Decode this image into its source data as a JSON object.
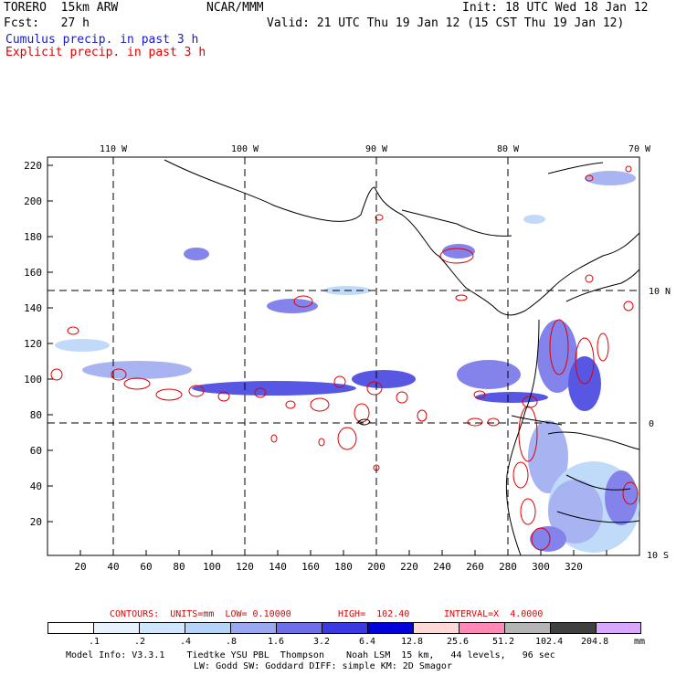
{
  "header": {
    "model": "TORERO  15km ARW",
    "center": "NCAR/MMM",
    "init": "Init: 18 UTC Wed 18 Jan 12",
    "fcst": "Fcst:   27 h",
    "valid": "Valid: 21 UTC Thu 19 Jan 12 (15 CST Thu 19 Jan 12)",
    "line_cumulus": "Cumulus precip. in past 3 h",
    "line_explicit": "Explicit precip. in past 3 h",
    "color_cumulus": "#1a1acc",
    "color_explicit": "#e00000"
  },
  "map": {
    "top_lon_labels": [
      "110 W",
      "100 W",
      "90 W",
      "80 W",
      "70 W"
    ],
    "right_lat_labels": [
      "10 N",
      "0",
      "10 S"
    ],
    "y_ticks": [
      "220",
      "200",
      "180",
      "160",
      "140",
      "120",
      "100",
      "80",
      "60",
      "40",
      "20"
    ],
    "x_ticks": [
      "20",
      "40",
      "60",
      "80",
      "100",
      "120",
      "140",
      "160",
      "180",
      "200",
      "220",
      "240",
      "260",
      "280",
      "300",
      "320"
    ]
  },
  "contours": {
    "label": "CONTOURS:  UNITS=mm  LOW= 0.10000",
    "high": "HIGH=  102.40",
    "interval": "INTERVAL=X  4.0000"
  },
  "legend": {
    "values": [
      ".1",
      ".2",
      ".4",
      ".8",
      "1.6",
      "3.2",
      "6.4",
      "12.8",
      "25.6",
      "51.2",
      "102.4",
      "204.8"
    ],
    "unit": "mm",
    "colors": [
      "#ffffff",
      "#e8f2ff",
      "#d0e6ff",
      "#b6d4f8",
      "#9aa8f0",
      "#6e6ee8",
      "#3a3ae0",
      "#0000d8",
      "#ffd8d8",
      "#ff88b8",
      "#b4b4b4",
      "#404040",
      "#d8a8ff"
    ]
  },
  "footer": {
    "line1": "Model Info: V3.3.1    Tiedtke YSU PBL  Thompson    Noah LSM  15 km,   44 levels,   96 sec",
    "line2": "LW: Godd SW: Goddard DIFF: simple KM: 2D Smagor"
  }
}
